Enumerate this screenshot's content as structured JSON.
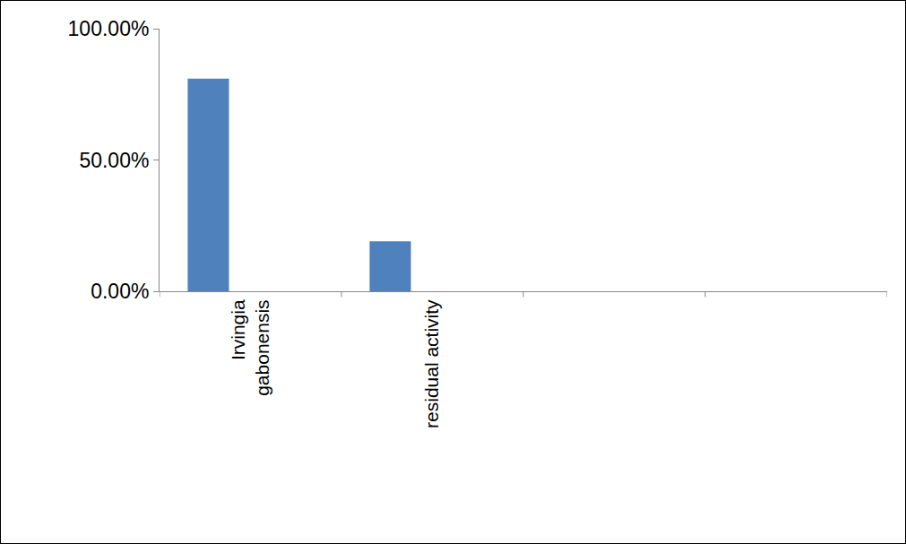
{
  "chart_data": {
    "type": "bar",
    "categories": [
      "Irvingia gabonensis",
      "residual activity",
      null,
      null
    ],
    "values": [
      81,
      19,
      null,
      null
    ],
    "color": "#4f81bd",
    "ylim": [
      0,
      100
    ],
    "yticks": [
      {
        "value": 0,
        "label": "0.00%"
      },
      {
        "value": 50,
        "label": "50.00%"
      },
      {
        "value": 100,
        "label": "100.00%"
      }
    ],
    "grid": false
  }
}
